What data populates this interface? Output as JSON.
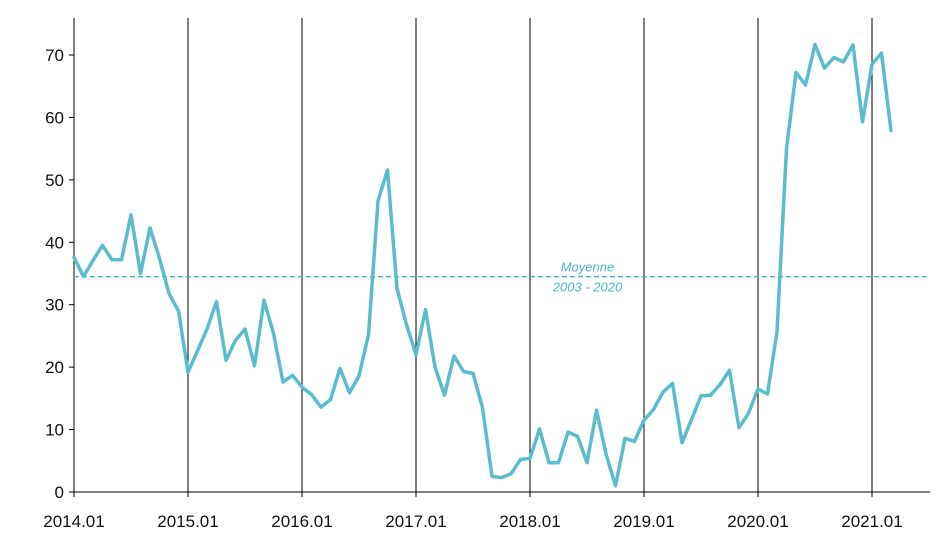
{
  "chart_data": {
    "type": "line",
    "title": "",
    "xlabel": "",
    "ylabel": "",
    "ylim": [
      0,
      75
    ],
    "xlim": [
      "2014.01",
      "2021.11"
    ],
    "yticks": [
      "0",
      "10",
      "20",
      "30",
      "40",
      "50",
      "60",
      "70"
    ],
    "xticks": [
      "2014.01",
      "2015.01",
      "2016.01",
      "2017.01",
      "2018.01",
      "2019.01",
      "2020.01",
      "2021.01"
    ],
    "grid": "vertical lines at each year",
    "line_color": "#5bbccc",
    "reference_line": {
      "value": 34.5,
      "label_line1": "Moyenne",
      "label_line2": "2003 - 2020",
      "color": "#4fb3c4",
      "style": "dashed"
    },
    "series": [
      {
        "name": "",
        "x": [
          "2014.01",
          "2014.02",
          "2014.03",
          "2014.04",
          "2014.05",
          "2014.06",
          "2014.07",
          "2014.08",
          "2014.09",
          "2014.10",
          "2014.11",
          "2014.12",
          "2015.01",
          "2015.02",
          "2015.03",
          "2015.04",
          "2015.05",
          "2015.06",
          "2015.07",
          "2015.08",
          "2015.09",
          "2015.10",
          "2015.11",
          "2015.12",
          "2016.01",
          "2016.02",
          "2016.03",
          "2016.04",
          "2016.05",
          "2016.06",
          "2016.07",
          "2016.08",
          "2016.09",
          "2016.10",
          "2016.11",
          "2016.12",
          "2017.01",
          "2017.02",
          "2017.03",
          "2017.04",
          "2017.05",
          "2017.06",
          "2017.07",
          "2017.08",
          "2017.09",
          "2017.10",
          "2017.11",
          "2017.12",
          "2018.01",
          "2018.02",
          "2018.03",
          "2018.04",
          "2018.05",
          "2018.06",
          "2018.07",
          "2018.08",
          "2018.09",
          "2018.10",
          "2018.11",
          "2018.12",
          "2019.01",
          "2019.02",
          "2019.03",
          "2019.04",
          "2019.05",
          "2019.06",
          "2019.07",
          "2019.08",
          "2019.09",
          "2019.10",
          "2019.11",
          "2019.12",
          "2020.01",
          "2020.02",
          "2020.03",
          "2020.04",
          "2020.05",
          "2020.06",
          "2020.07",
          "2020.08",
          "2020.09",
          "2020.10",
          "2020.11",
          "2020.12",
          "2021.01",
          "2021.02",
          "2021.03"
        ],
        "values": [
          37.6,
          34.5,
          37.1,
          39.5,
          37.2,
          37.2,
          44.4,
          35.0,
          42.3,
          37.4,
          31.8,
          29.0,
          19.2,
          22.6,
          26.1,
          30.5,
          21.1,
          24.3,
          26.1,
          20.2,
          30.7,
          25.4,
          17.6,
          18.7,
          16.8,
          15.6,
          13.6,
          14.8,
          19.8,
          15.9,
          18.6,
          25.2,
          46.6,
          51.6,
          32.6,
          26.8,
          22.0,
          29.2,
          20.0,
          15.5,
          21.8,
          19.3,
          19.0,
          13.5,
          2.5,
          2.3,
          2.9,
          5.2,
          5.4,
          10.1,
          4.7,
          4.7,
          9.6,
          8.9,
          4.7,
          13.1,
          6.1,
          1.0,
          8.6,
          8.1,
          11.5,
          13.2,
          16.0,
          17.4,
          7.9,
          11.6,
          15.4,
          15.5,
          17.2,
          19.5,
          10.3,
          12.6,
          16.5,
          15.7,
          25.7,
          55.0,
          67.2,
          65.2,
          71.7,
          67.9,
          69.6,
          68.9,
          71.6,
          59.3,
          68.5,
          70.3,
          57.9
        ]
      }
    ]
  }
}
